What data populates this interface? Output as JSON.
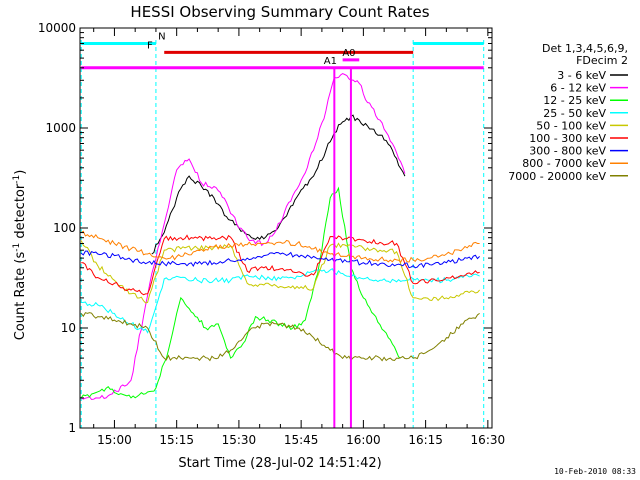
{
  "chart_data": {
    "type": "line",
    "title": "HESSI Observing Summary Count Rates",
    "xlabel": "Start Time (28-Jul-02 14:51:42)",
    "ylabel_prefix": "Count Rate (s",
    "ylabel_sup": "-1",
    "ylabel_mid": " detector",
    "ylabel_sup2": "-1",
    "ylabel_suffix": ")",
    "y_scale": "log",
    "ylim": [
      1,
      10000
    ],
    "xlim": [
      "14:51:42",
      "16:31:00"
    ],
    "x_ticks": [
      "15:00",
      "15:15",
      "15:30",
      "15:45",
      "16:00",
      "16:15",
      "16:30"
    ],
    "y_ticks": [
      "1",
      "10",
      "100",
      "1000",
      "10000"
    ],
    "legend_title": [
      "Det 1,3,4,5,6,9,",
      "FDecim 2"
    ],
    "legend_position": "right",
    "date_stamp": "10-Feb-2010 08:33",
    "flags": [
      {
        "label": "N",
        "color": "#00ffff",
        "level": 7000
      },
      {
        "label": "F",
        "color": "#e00000",
        "level": 5700
      },
      {
        "label": "A1",
        "color": "#ff00ff",
        "level": 4000
      },
      {
        "label": "A0",
        "color": "#ff00ff",
        "level": 4800
      }
    ],
    "night_boundaries": [
      "14:52",
      "15:10",
      "16:12",
      "16:29"
    ],
    "series": [
      {
        "name": "3 - 6 keV",
        "color": "#000000",
        "x": [
          "15:09",
          "15:12",
          "15:15",
          "15:18",
          "15:21",
          "15:24",
          "15:27",
          "15:30",
          "15:33",
          "15:36",
          "15:39",
          "15:42",
          "15:45",
          "15:48",
          "15:51",
          "15:53",
          "15:55",
          "15:57",
          "15:59",
          "16:01",
          "16:04",
          "16:07",
          "16:10"
        ],
        "values": [
          55,
          90,
          200,
          330,
          260,
          200,
          130,
          100,
          80,
          78,
          95,
          150,
          240,
          330,
          600,
          900,
          1150,
          1300,
          1200,
          1050,
          850,
          600,
          330
        ]
      },
      {
        "name": "6 - 12 keV",
        "color": "#ff00ff",
        "x": [
          "14:52",
          "14:58",
          "15:04",
          "15:09",
          "15:12",
          "15:15",
          "15:18",
          "15:21",
          "15:24",
          "15:27",
          "15:30",
          "15:33",
          "15:36",
          "15:39",
          "15:42",
          "15:45",
          "15:48",
          "15:51",
          "15:53",
          "15:55",
          "15:57",
          "15:59",
          "16:01",
          "16:04",
          "16:07",
          "16:10"
        ],
        "values": [
          2,
          2,
          3,
          35,
          110,
          380,
          490,
          280,
          260,
          180,
          100,
          75,
          70,
          95,
          180,
          300,
          600,
          1500,
          3200,
          3500,
          3000,
          2800,
          1800,
          1200,
          700,
          350
        ]
      },
      {
        "name": "12 - 25 keV",
        "color": "#00ff00",
        "x": [
          "14:52",
          "14:58",
          "15:04",
          "15:10",
          "15:13",
          "15:16",
          "15:19",
          "15:22",
          "15:25",
          "15:28",
          "15:31",
          "15:34",
          "15:37",
          "15:40",
          "15:43",
          "15:46",
          "15:49",
          "15:52",
          "15:54",
          "15:57",
          "16:00",
          "16:03",
          "16:06",
          "16:09"
        ],
        "values": [
          2,
          2.5,
          2,
          2.5,
          6,
          20,
          14,
          10,
          11,
          5,
          7,
          13,
          12,
          11,
          10,
          12,
          35,
          200,
          250,
          40,
          20,
          13,
          8,
          5
        ]
      },
      {
        "name": "25 - 50 keV",
        "color": "#00ffff",
        "x": [
          "14:52",
          "14:56",
          "15:00",
          "15:04",
          "15:08",
          "15:12",
          "15:16",
          "15:20",
          "15:24",
          "15:28",
          "15:32",
          "15:36",
          "15:40",
          "15:44",
          "15:48",
          "15:52",
          "15:56",
          "16:00",
          "16:04",
          "16:08",
          "16:12",
          "16:16",
          "16:20",
          "16:24",
          "16:28"
        ],
        "values": [
          18,
          17,
          14,
          11,
          9,
          31,
          32,
          30,
          30,
          30,
          34,
          32,
          31,
          33,
          37,
          38,
          33,
          31,
          30,
          29,
          31,
          30,
          30,
          32,
          33
        ]
      },
      {
        "name": "50 - 100 keV",
        "color": "#c8c800",
        "x": [
          "14:52",
          "14:56",
          "15:00",
          "15:04",
          "15:08",
          "15:12",
          "15:16",
          "15:20",
          "15:24",
          "15:28",
          "15:32",
          "15:36",
          "15:40",
          "15:44",
          "15:48",
          "15:52",
          "15:56",
          "16:00",
          "16:04",
          "16:08",
          "16:12",
          "16:16",
          "16:20",
          "16:24",
          "16:28"
        ],
        "values": [
          75,
          42,
          30,
          22,
          18,
          60,
          62,
          63,
          64,
          66,
          28,
          27,
          26,
          26,
          25,
          67,
          66,
          63,
          60,
          58,
          20,
          19,
          20,
          22,
          24
        ]
      },
      {
        "name": "100 - 300 keV",
        "color": "#ff0000",
        "x": [
          "14:52",
          "14:56",
          "15:00",
          "15:04",
          "15:08",
          "15:12",
          "15:16",
          "15:20",
          "15:24",
          "15:28",
          "15:32",
          "15:36",
          "15:40",
          "15:44",
          "15:48",
          "15:52",
          "15:56",
          "16:00",
          "16:04",
          "16:08",
          "16:12",
          "16:16",
          "16:20",
          "16:24",
          "16:28"
        ],
        "values": [
          45,
          32,
          28,
          24,
          22,
          78,
          80,
          79,
          80,
          81,
          37,
          40,
          39,
          36,
          34,
          82,
          78,
          76,
          72,
          70,
          28,
          30,
          32,
          33,
          36
        ]
      },
      {
        "name": "300 - 800 keV",
        "color": "#0000ff",
        "x": [
          "14:52",
          "14:56",
          "15:00",
          "15:04",
          "15:08",
          "15:12",
          "15:16",
          "15:20",
          "15:24",
          "15:28",
          "15:32",
          "15:36",
          "15:40",
          "15:44",
          "15:48",
          "15:52",
          "15:56",
          "16:00",
          "16:04",
          "16:08",
          "16:12",
          "16:16",
          "16:20",
          "16:24",
          "16:28"
        ],
        "values": [
          56,
          55,
          53,
          48,
          45,
          44,
          44,
          44,
          45,
          47,
          50,
          53,
          55,
          54,
          52,
          48,
          46,
          45,
          44,
          43,
          42,
          43,
          45,
          48,
          52
        ]
      },
      {
        "name": "800 - 7000 keV",
        "color": "#ff8000",
        "x": [
          "14:52",
          "14:56",
          "15:00",
          "15:04",
          "15:08",
          "15:12",
          "15:16",
          "15:20",
          "15:24",
          "15:28",
          "15:32",
          "15:36",
          "15:40",
          "15:44",
          "15:48",
          "15:52",
          "15:56",
          "16:00",
          "16:04",
          "16:08",
          "16:12",
          "16:16",
          "16:20",
          "16:24",
          "16:28"
        ],
        "values": [
          90,
          80,
          70,
          62,
          55,
          50,
          52,
          60,
          65,
          66,
          68,
          70,
          72,
          70,
          62,
          55,
          52,
          50,
          49,
          48,
          48,
          50,
          55,
          62,
          70
        ]
      },
      {
        "name": "7000 - 20000 keV",
        "color": "#808000",
        "x": [
          "14:52",
          "14:56",
          "15:00",
          "15:04",
          "15:08",
          "15:12",
          "15:16",
          "15:20",
          "15:24",
          "15:28",
          "15:32",
          "15:36",
          "15:40",
          "15:44",
          "15:48",
          "15:52",
          "15:56",
          "16:00",
          "16:04",
          "16:08",
          "16:12",
          "16:16",
          "16:20",
          "16:24",
          "16:28"
        ],
        "values": [
          14,
          13,
          12,
          11,
          10,
          5,
          5,
          5,
          5,
          6,
          9,
          11,
          11,
          10,
          8,
          6,
          5,
          5,
          5,
          5,
          5,
          6,
          8,
          11,
          14
        ]
      }
    ]
  }
}
